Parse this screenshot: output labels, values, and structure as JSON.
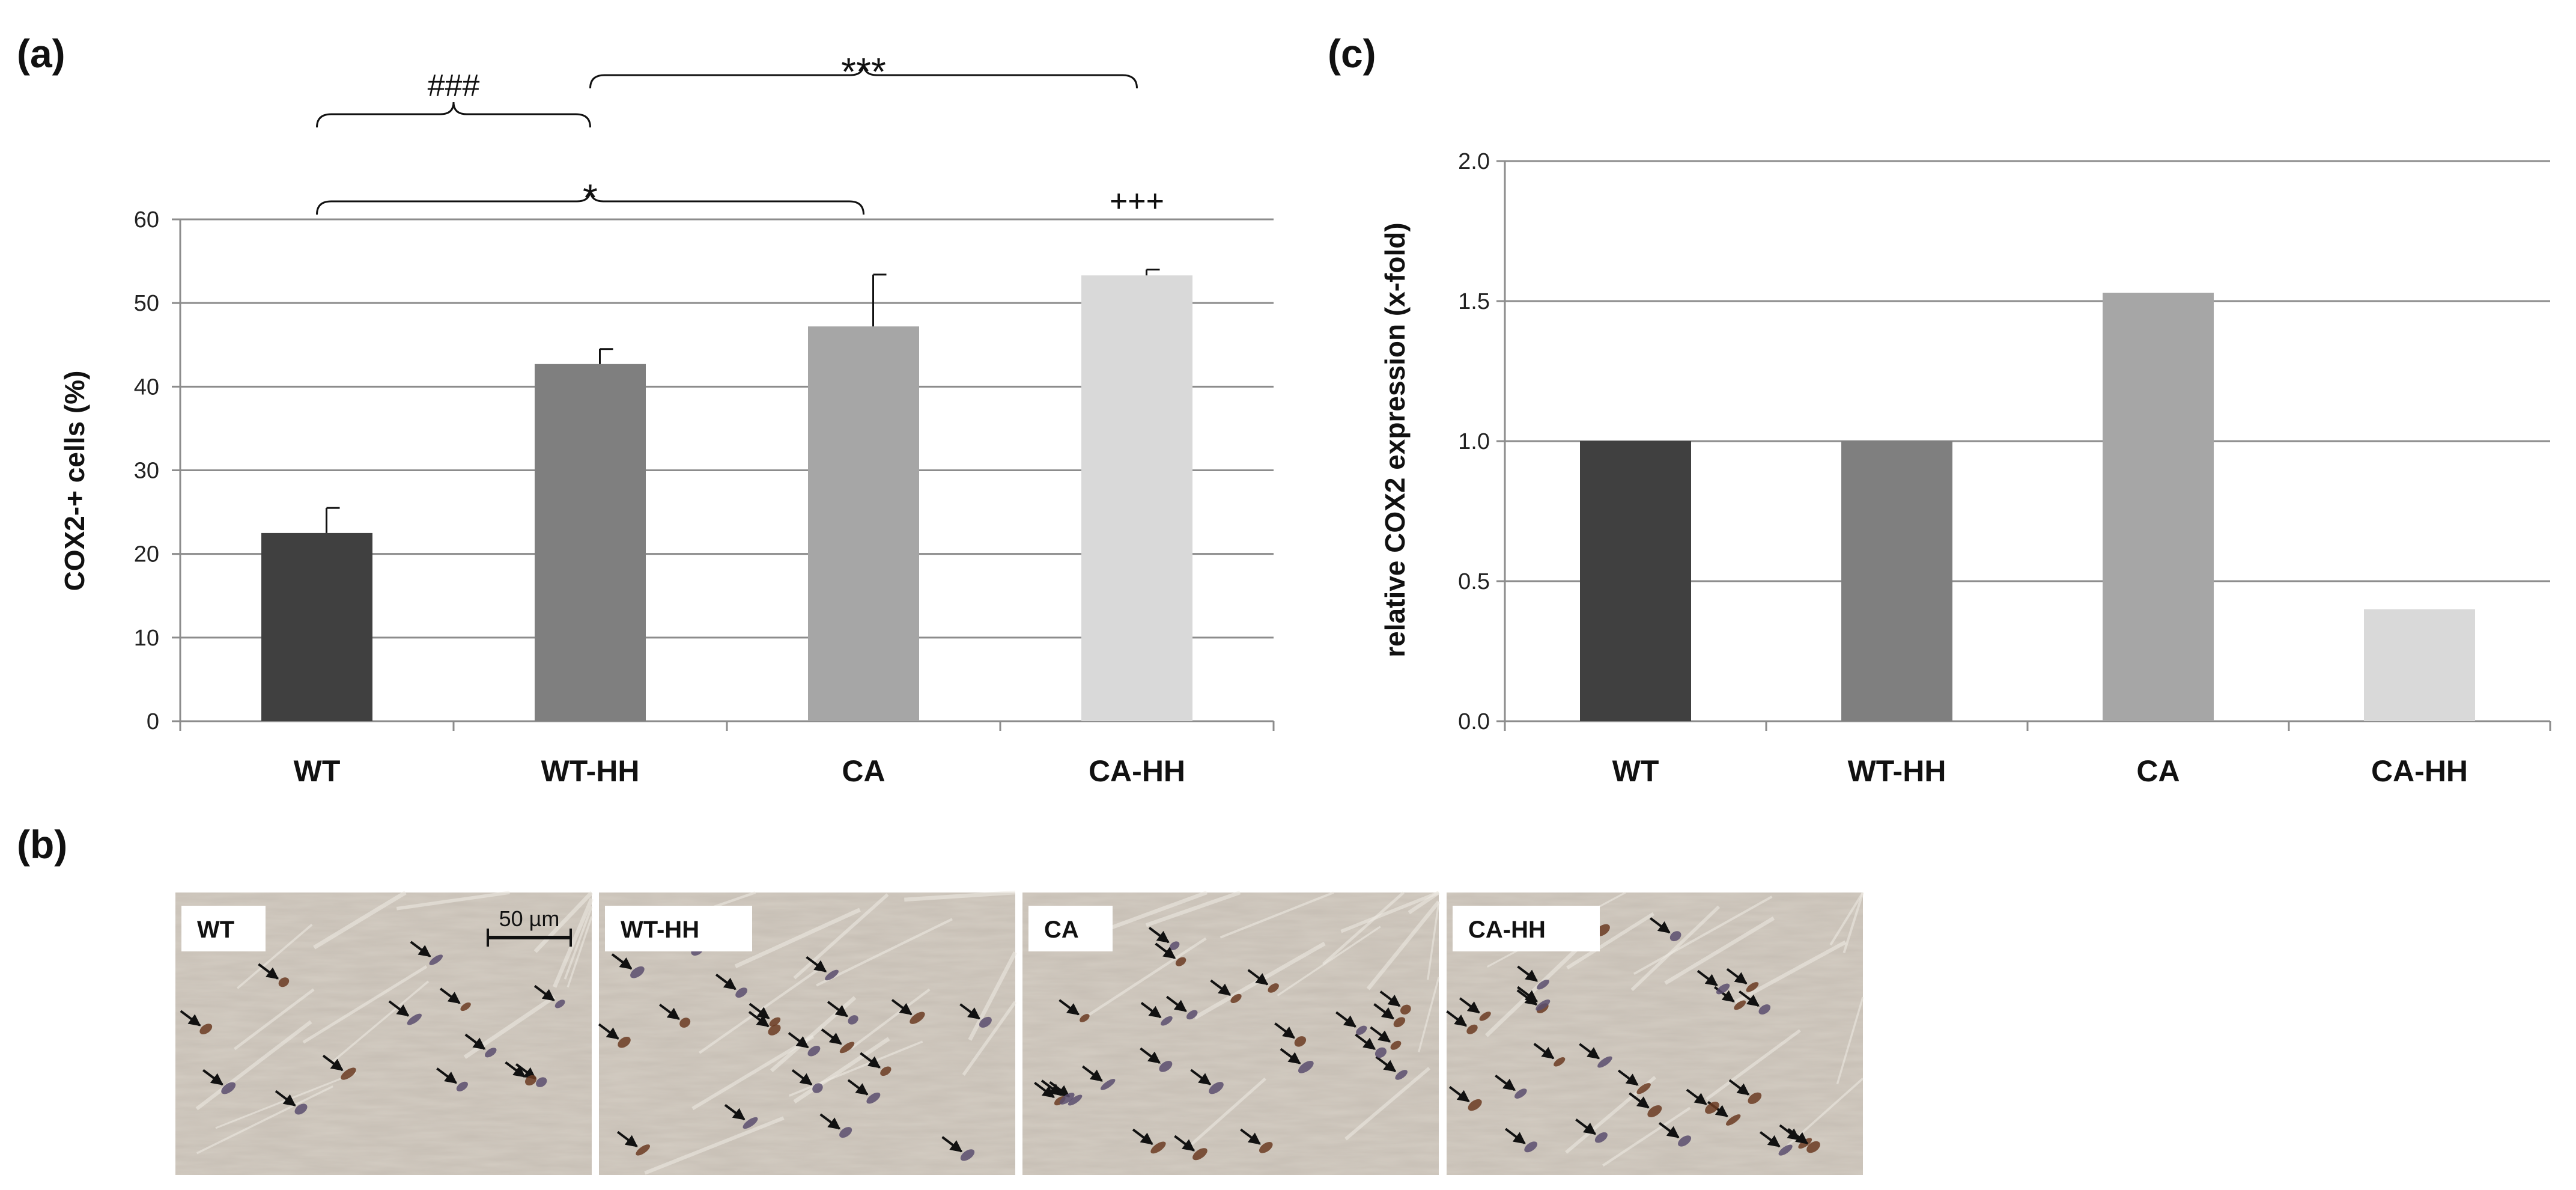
{
  "colors": {
    "WT": "#404040",
    "WT-HH": "#7f7f7f",
    "CA": "#a6a6a6",
    "CA-HH": "#d9d9d9",
    "grid": "#8c8c8c",
    "axis": "#8c8c8c"
  },
  "chart_data": [
    {
      "id": "a",
      "panel_label": "(a)",
      "type": "bar",
      "categories": [
        "WT",
        "WT-HH",
        "CA",
        "CA-HH"
      ],
      "values": [
        22.5,
        42.7,
        47.2,
        53.3
      ],
      "errors": [
        3.0,
        1.8,
        6.2,
        0.7
      ],
      "xlabel": "",
      "ylabel": "COX2-+ cells (%)",
      "ylim": [
        0,
        60
      ],
      "yticks": [
        0,
        10,
        20,
        30,
        40,
        50,
        60
      ],
      "tick_labels": [
        "0",
        "10",
        "20",
        "30",
        "40",
        "50",
        "60"
      ],
      "grid": true,
      "annotations": [
        {
          "text": "###",
          "from": "WT",
          "to": "WT-HH",
          "tier": "high",
          "style": "hash"
        },
        {
          "text": "***",
          "from": "WT-HH",
          "to": "CA-HH",
          "tier": "top",
          "style": "star"
        },
        {
          "text": "*",
          "from": "WT",
          "to": "CA",
          "tier": "low",
          "style": "star"
        },
        {
          "text": "+++",
          "over": "CA-HH",
          "style": "plain"
        }
      ]
    },
    {
      "id": "c",
      "panel_label": "(c)",
      "type": "bar",
      "categories": [
        "WT",
        "WT-HH",
        "CA",
        "CA-HH"
      ],
      "values": [
        1.0,
        1.0,
        1.53,
        0.4
      ],
      "xlabel": "",
      "ylabel": "relative COX2 expression  (x-fold)",
      "ylim": [
        0,
        2.0
      ],
      "yticks": [
        0,
        0.5,
        1.0,
        1.5,
        2.0
      ],
      "tick_labels": [
        "0.0",
        "0.5",
        "1.0",
        "1.5",
        "2.0"
      ],
      "grid": true
    }
  ],
  "micrographs": {
    "panel_label": "(b)",
    "tiles": [
      {
        "label": "WT",
        "arrow_count": 13
      },
      {
        "label": "WT-HH",
        "arrow_count": 22
      },
      {
        "label": "CA",
        "arrow_count": 24
      },
      {
        "label": "CA-HH",
        "arrow_count": 27
      }
    ],
    "scale_bar_label": "50 µm"
  }
}
